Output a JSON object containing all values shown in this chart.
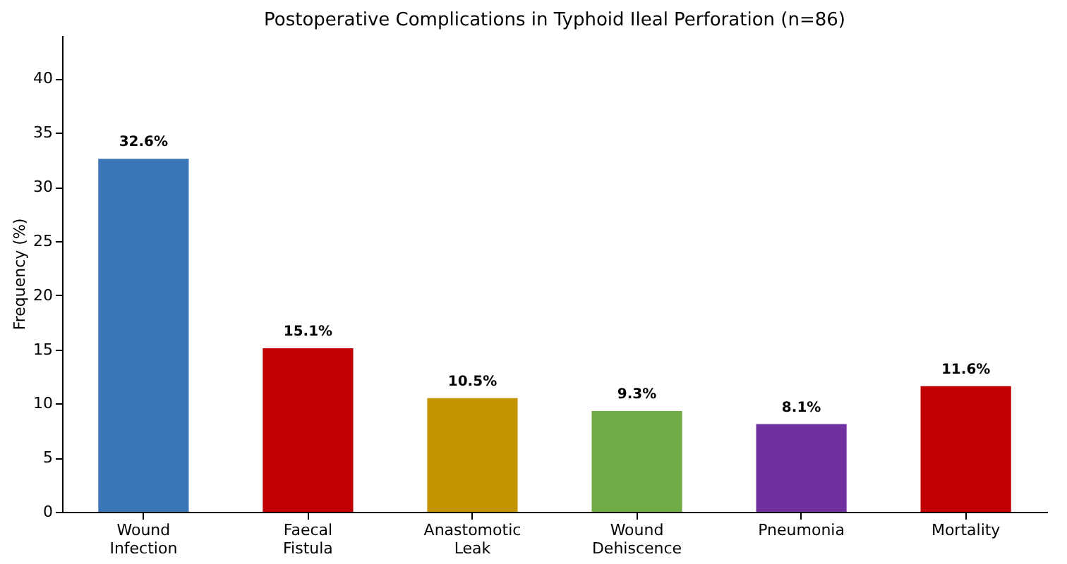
{
  "chart_data": {
    "type": "bar",
    "title": "Postoperative Complications in Typhoid Ileal Perforation (n=86)",
    "ylabel": "Frequency (%)",
    "categories": [
      "Wound Infection",
      "Faecal Fistula",
      "Anastomotic Leak",
      "Wound Dehiscence",
      "Pneumonia",
      "Mortality"
    ],
    "values": [
      32.6,
      15.1,
      10.5,
      9.3,
      8.1,
      11.6
    ],
    "colors": [
      "#3a75b8",
      "#c00000",
      "#c49300",
      "#70ad47",
      "#7030a0",
      "#c00000"
    ],
    "value_labels": [
      "32.6%",
      "15.1%",
      "10.5%",
      "9.3%",
      "8.1%",
      "11.6%"
    ],
    "ylim": [
      0,
      44
    ],
    "yticks": [
      0,
      5,
      10,
      15,
      20,
      25,
      30,
      35,
      40
    ],
    "grid": false
  }
}
